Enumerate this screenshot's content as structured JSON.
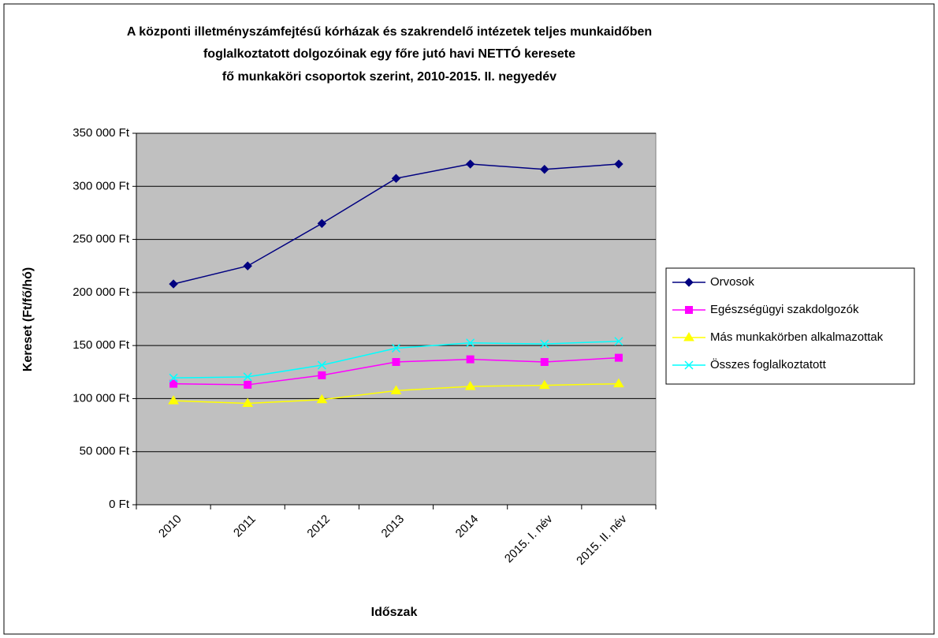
{
  "chart_data": {
    "type": "line",
    "title": [
      "A központi illetményszámfejtésű kórházak és szakrendelő intézetek teljes munkaidőben",
      "foglalkoztatott dolgozóinak egy főre jutó havi NETTÓ keresete",
      "fő munkaköri csoportok szerint, 2010-2015. II. negyedév"
    ],
    "x_label": "Időszak",
    "y_label": "Kereset (Ft/fő/hó)",
    "categories": [
      "2010",
      "2011",
      "2012",
      "2013",
      "2014",
      "2015. I. név",
      "2015. II. név"
    ],
    "series": [
      {
        "name": "Orvosok",
        "color": "#000080",
        "marker": "diamond",
        "values": [
          208000,
          225000,
          265000,
          307500,
          321000,
          316000,
          321000
        ]
      },
      {
        "name": "Egészségügyi szakdolgozók",
        "color": "#ff00ff",
        "marker": "square",
        "values": [
          114000,
          113000,
          122000,
          134500,
          137000,
          134500,
          138500
        ]
      },
      {
        "name": "Más munkakörben alkalmazottak",
        "color": "#ffff00",
        "marker": "triangle",
        "values": [
          98000,
          95500,
          99000,
          107500,
          111500,
          112500,
          114000
        ]
      },
      {
        "name": "Összes foglalkoztatott",
        "color": "#00ffff",
        "marker": "x",
        "values": [
          119500,
          120500,
          131500,
          147500,
          152500,
          151500,
          154000
        ]
      }
    ],
    "ylim": [
      0,
      350000
    ],
    "yticks": [
      {
        "value": 0,
        "label": "0 Ft"
      },
      {
        "value": 50000,
        "label": "50 000 Ft"
      },
      {
        "value": 100000,
        "label": "100 000 Ft"
      },
      {
        "value": 150000,
        "label": "150 000 Ft"
      },
      {
        "value": 200000,
        "label": "200 000 Ft"
      },
      {
        "value": 250000,
        "label": "250 000 Ft"
      },
      {
        "value": 300000,
        "label": "300 000 Ft"
      },
      {
        "value": 350000,
        "label": "350 000 Ft"
      }
    ],
    "grid": true,
    "plot_background": "#c0c0c0",
    "legend": "right"
  }
}
